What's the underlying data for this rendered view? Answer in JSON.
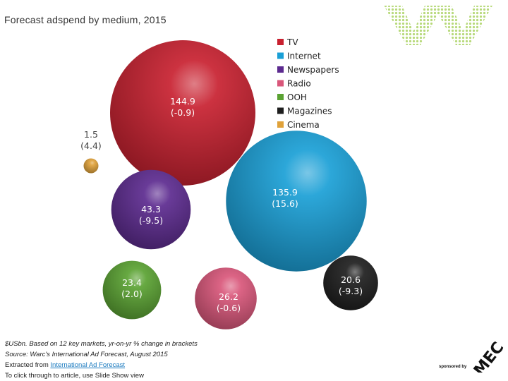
{
  "title": "Forecast adspend by medium, 2015",
  "chart_data": {
    "type": "bubble",
    "title": "Forecast adspend by medium, 2015",
    "unit": "$USbn",
    "legend_position": "top-right",
    "series": [
      {
        "name": "TV",
        "value": 144.9,
        "value_label": "144.9",
        "change_label": "(-0.9)",
        "color": "#c8202f"
      },
      {
        "name": "Internet",
        "value": 135.9,
        "value_label": "135.9",
        "change_label": "(15.6)",
        "color": "#1a9fd6"
      },
      {
        "name": "Newspapers",
        "value": 43.3,
        "value_label": "43.3",
        "change_label": "(-9.5)",
        "color": "#5c2a8f"
      },
      {
        "name": "Radio",
        "value": 26.2,
        "value_label": "26.2",
        "change_label": "(-0.6)",
        "color": "#d9577a"
      },
      {
        "name": "OOH",
        "value": 23.4,
        "value_label": "23.4",
        "change_label": "(2.0)",
        "color": "#5aa232"
      },
      {
        "name": "Magazines",
        "value": 20.6,
        "value_label": "20.6",
        "change_label": "(-9.3)",
        "color": "#1e1e1e"
      },
      {
        "name": "Cinema",
        "value": 1.5,
        "value_label": "1.5",
        "change_label": "(4.4)",
        "color": "#e0a23a"
      }
    ]
  },
  "footnotes": {
    "basis": "$USbn. Based on 12 key markets, yr-on-yr % change in brackets",
    "source": "Source: Warc's International Ad Forecast, August 2015",
    "extract_prefix": "Extracted from ",
    "extract_link": "International Ad Forecast",
    "slideshow": "To click through to article, use Slide Show view"
  },
  "sponsor": {
    "label": "sponsored by",
    "logo_text": "MEC"
  }
}
